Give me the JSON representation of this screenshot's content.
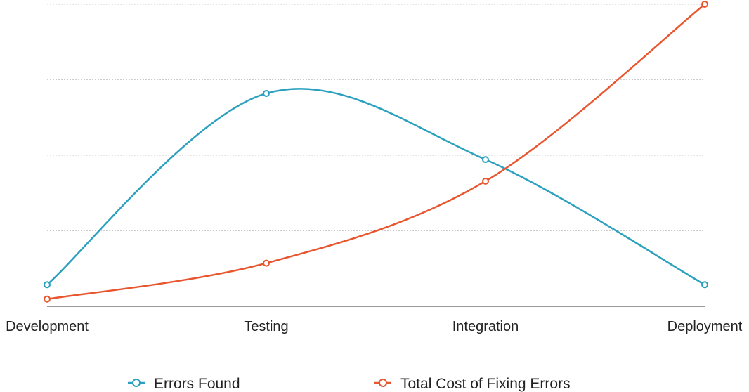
{
  "chart_data": {
    "type": "line",
    "categories": [
      "Development",
      "Testing",
      "Integration",
      "Deployment"
    ],
    "series": [
      {
        "name": "Errors Found",
        "values": [
          1.5,
          14.8,
          10.2,
          1.5
        ],
        "color": "#2ba0bf"
      },
      {
        "name": "Total Cost of Fixing Errors",
        "values": [
          0.5,
          3.0,
          8.7,
          21.0
        ],
        "color": "#e8562f"
      }
    ],
    "ylim": [
      0,
      21
    ],
    "grid": true,
    "gridlines": [
      5.25,
      10.5,
      15.75,
      21
    ],
    "y_axis_labels": false,
    "legend_position": "bottom-center",
    "colors": {
      "errors": "#2ba0bf",
      "cost": "#e8562f",
      "axis": "#333333",
      "grid": "#cccccc",
      "text": "#222222"
    }
  }
}
